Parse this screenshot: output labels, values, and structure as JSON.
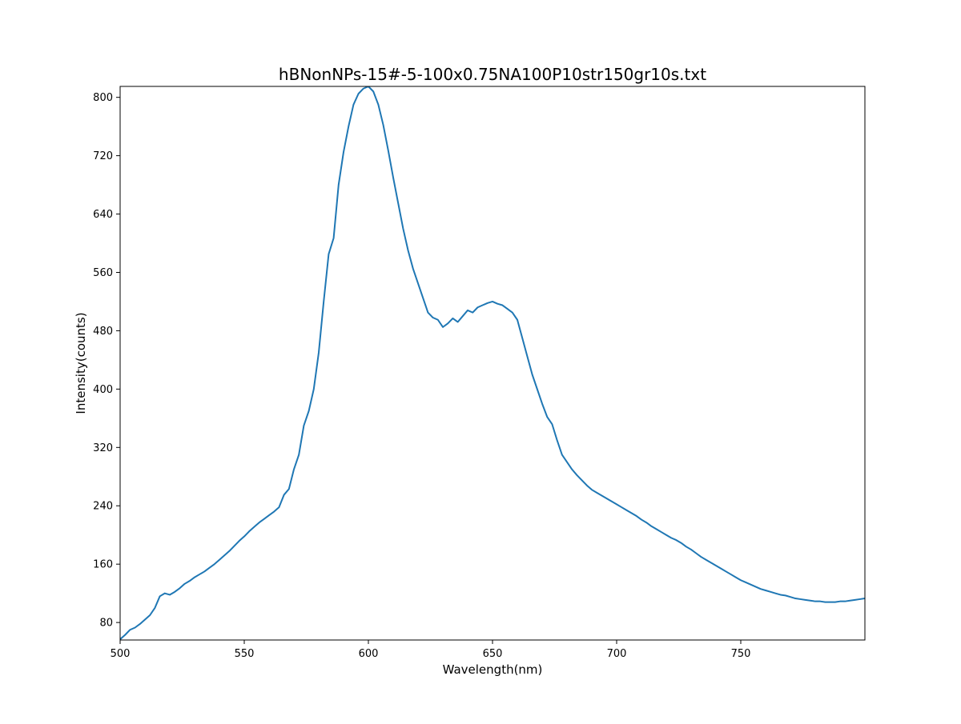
{
  "chart_data": {
    "type": "line",
    "title": "hBNonNPs-15#-5-100x0.75NA100P10str150gr10s.txt",
    "xlabel": "Wavelength(nm)",
    "ylabel": "Intensity(counts)",
    "xlim": [
      500,
      800
    ],
    "ylim": [
      56,
      815
    ],
    "xticks": [
      500,
      550,
      600,
      650,
      700,
      750
    ],
    "yticks": [
      80,
      160,
      240,
      320,
      400,
      480,
      560,
      640,
      720,
      800
    ],
    "grid": false,
    "legend": "none",
    "series": [
      {
        "color": "#1f77b4",
        "x": [
          500,
          502,
          504,
          506,
          508,
          510,
          512,
          514,
          516,
          518,
          520,
          522,
          524,
          526,
          528,
          530,
          532,
          534,
          536,
          538,
          540,
          542,
          544,
          546,
          548,
          550,
          552,
          554,
          556,
          558,
          560,
          562,
          564,
          566,
          568,
          570,
          572,
          574,
          576,
          578,
          580,
          582,
          584,
          586,
          588,
          590,
          592,
          594,
          596,
          598,
          600,
          602,
          604,
          606,
          608,
          610,
          612,
          614,
          616,
          618,
          620,
          622,
          624,
          626,
          628,
          630,
          632,
          634,
          636,
          638,
          640,
          642,
          644,
          646,
          648,
          650,
          652,
          654,
          656,
          658,
          660,
          662,
          664,
          666,
          668,
          670,
          672,
          674,
          676,
          678,
          680,
          682,
          684,
          686,
          688,
          690,
          692,
          694,
          696,
          698,
          700,
          702,
          704,
          706,
          708,
          710,
          712,
          714,
          716,
          718,
          720,
          722,
          724,
          726,
          728,
          730,
          732,
          734,
          736,
          738,
          740,
          742,
          744,
          746,
          748,
          750,
          752,
          754,
          756,
          758,
          760,
          762,
          764,
          766,
          768,
          770,
          772,
          774,
          776,
          778,
          780,
          782,
          784,
          786,
          788,
          790,
          792,
          794,
          796,
          798,
          800
        ],
        "y": [
          57,
          63,
          70,
          73,
          78,
          84,
          90,
          100,
          116,
          120,
          118,
          122,
          127,
          133,
          137,
          142,
          146,
          150,
          155,
          160,
          166,
          172,
          178,
          185,
          192,
          198,
          205,
          211,
          217,
          222,
          227,
          232,
          238,
          255,
          263,
          290,
          310,
          350,
          370,
          400,
          450,
          520,
          585,
          607,
          680,
          725,
          760,
          790,
          805,
          812,
          815,
          808,
          790,
          762,
          727,
          690,
          655,
          620,
          590,
          565,
          545,
          525,
          505,
          498,
          495,
          485,
          490,
          497,
          492,
          500,
          508,
          505,
          512,
          515,
          518,
          520,
          517,
          515,
          510,
          505,
          495,
          470,
          445,
          420,
          400,
          380,
          362,
          352,
          330,
          310,
          300,
          290,
          282,
          275,
          268,
          262,
          258,
          254,
          250,
          246,
          242,
          238,
          234,
          230,
          226,
          221,
          217,
          212,
          208,
          204,
          200,
          196,
          193,
          189,
          184,
          180,
          175,
          170,
          166,
          162,
          158,
          154,
          150,
          146,
          142,
          138,
          135,
          132,
          129,
          126,
          124,
          122,
          120,
          118,
          117,
          115,
          113,
          112,
          111,
          110,
          109,
          109,
          108,
          108,
          108,
          109,
          109,
          110,
          111,
          112,
          113
        ]
      }
    ]
  }
}
